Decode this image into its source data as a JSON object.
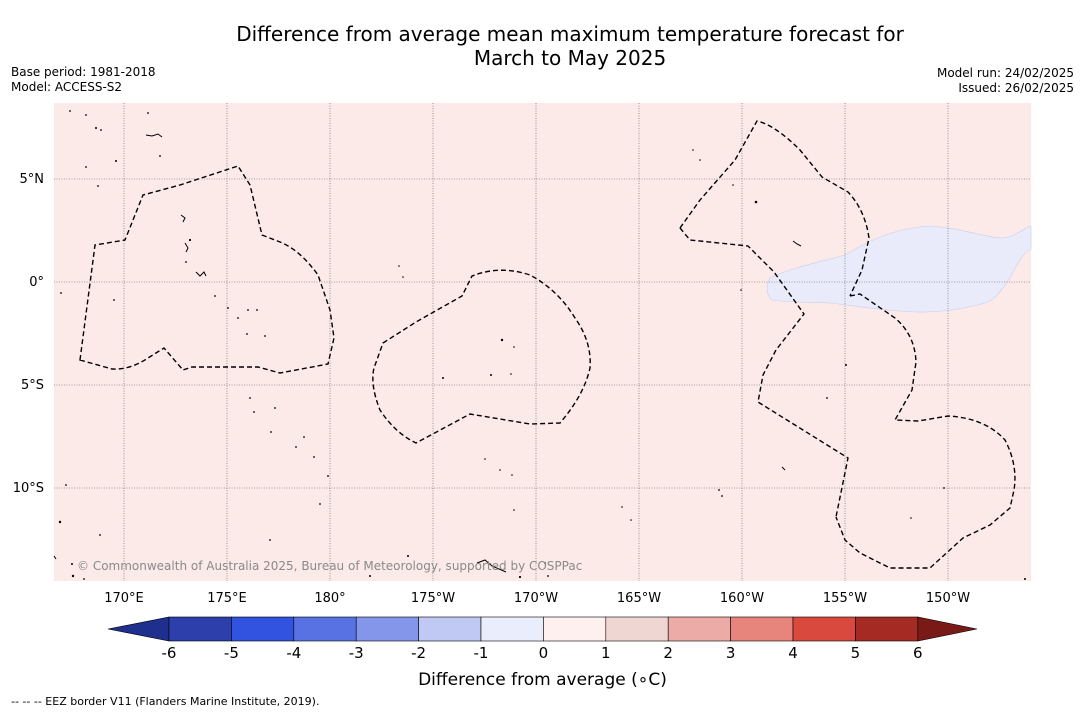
{
  "header": {
    "title_line1": "Difference from average mean maximum temperature forecast for",
    "title_line2": "March to May 2025",
    "base_period": "Base period: 1981-2018",
    "model": "Model: ACCESS-S2",
    "model_run": "Model run: 24/02/2025",
    "issued": "Issued: 26/02/2025"
  },
  "map": {
    "background_color": "#fbeae8",
    "anomaly_patch_color": "#e9ebfa",
    "copyright": "© Commonwealth of Australia 2025, Bureau of Meteorology, supported by COSPPac",
    "lat_labels": [
      "5°N",
      "0°",
      "5°S",
      "10°S"
    ],
    "lon_labels": [
      "170°E",
      "175°E",
      "180°",
      "175°W",
      "170°W",
      "165°W",
      "160°W",
      "155°W",
      "150°W"
    ]
  },
  "colorbar": {
    "title": "Difference from average (∘C)",
    "tick_labels": [
      "-6",
      "-5",
      "-4",
      "-3",
      "-2",
      "-1",
      "0",
      "1",
      "2",
      "3",
      "4",
      "5",
      "6"
    ],
    "colors": [
      "#1e2f8e",
      "#2c3fab",
      "#3252e0",
      "#5872e4",
      "#8396ea",
      "#c0c8f4",
      "#eaedfb",
      "#fdf0ee",
      "#f0d6d2",
      "#ecaba6",
      "#e7847b",
      "#d9493e",
      "#a62a24",
      "#7a1a17"
    ]
  },
  "footer": {
    "legend": "--  --  -- EEZ border V11 (Flanders Marine Institute, 2019)."
  }
}
